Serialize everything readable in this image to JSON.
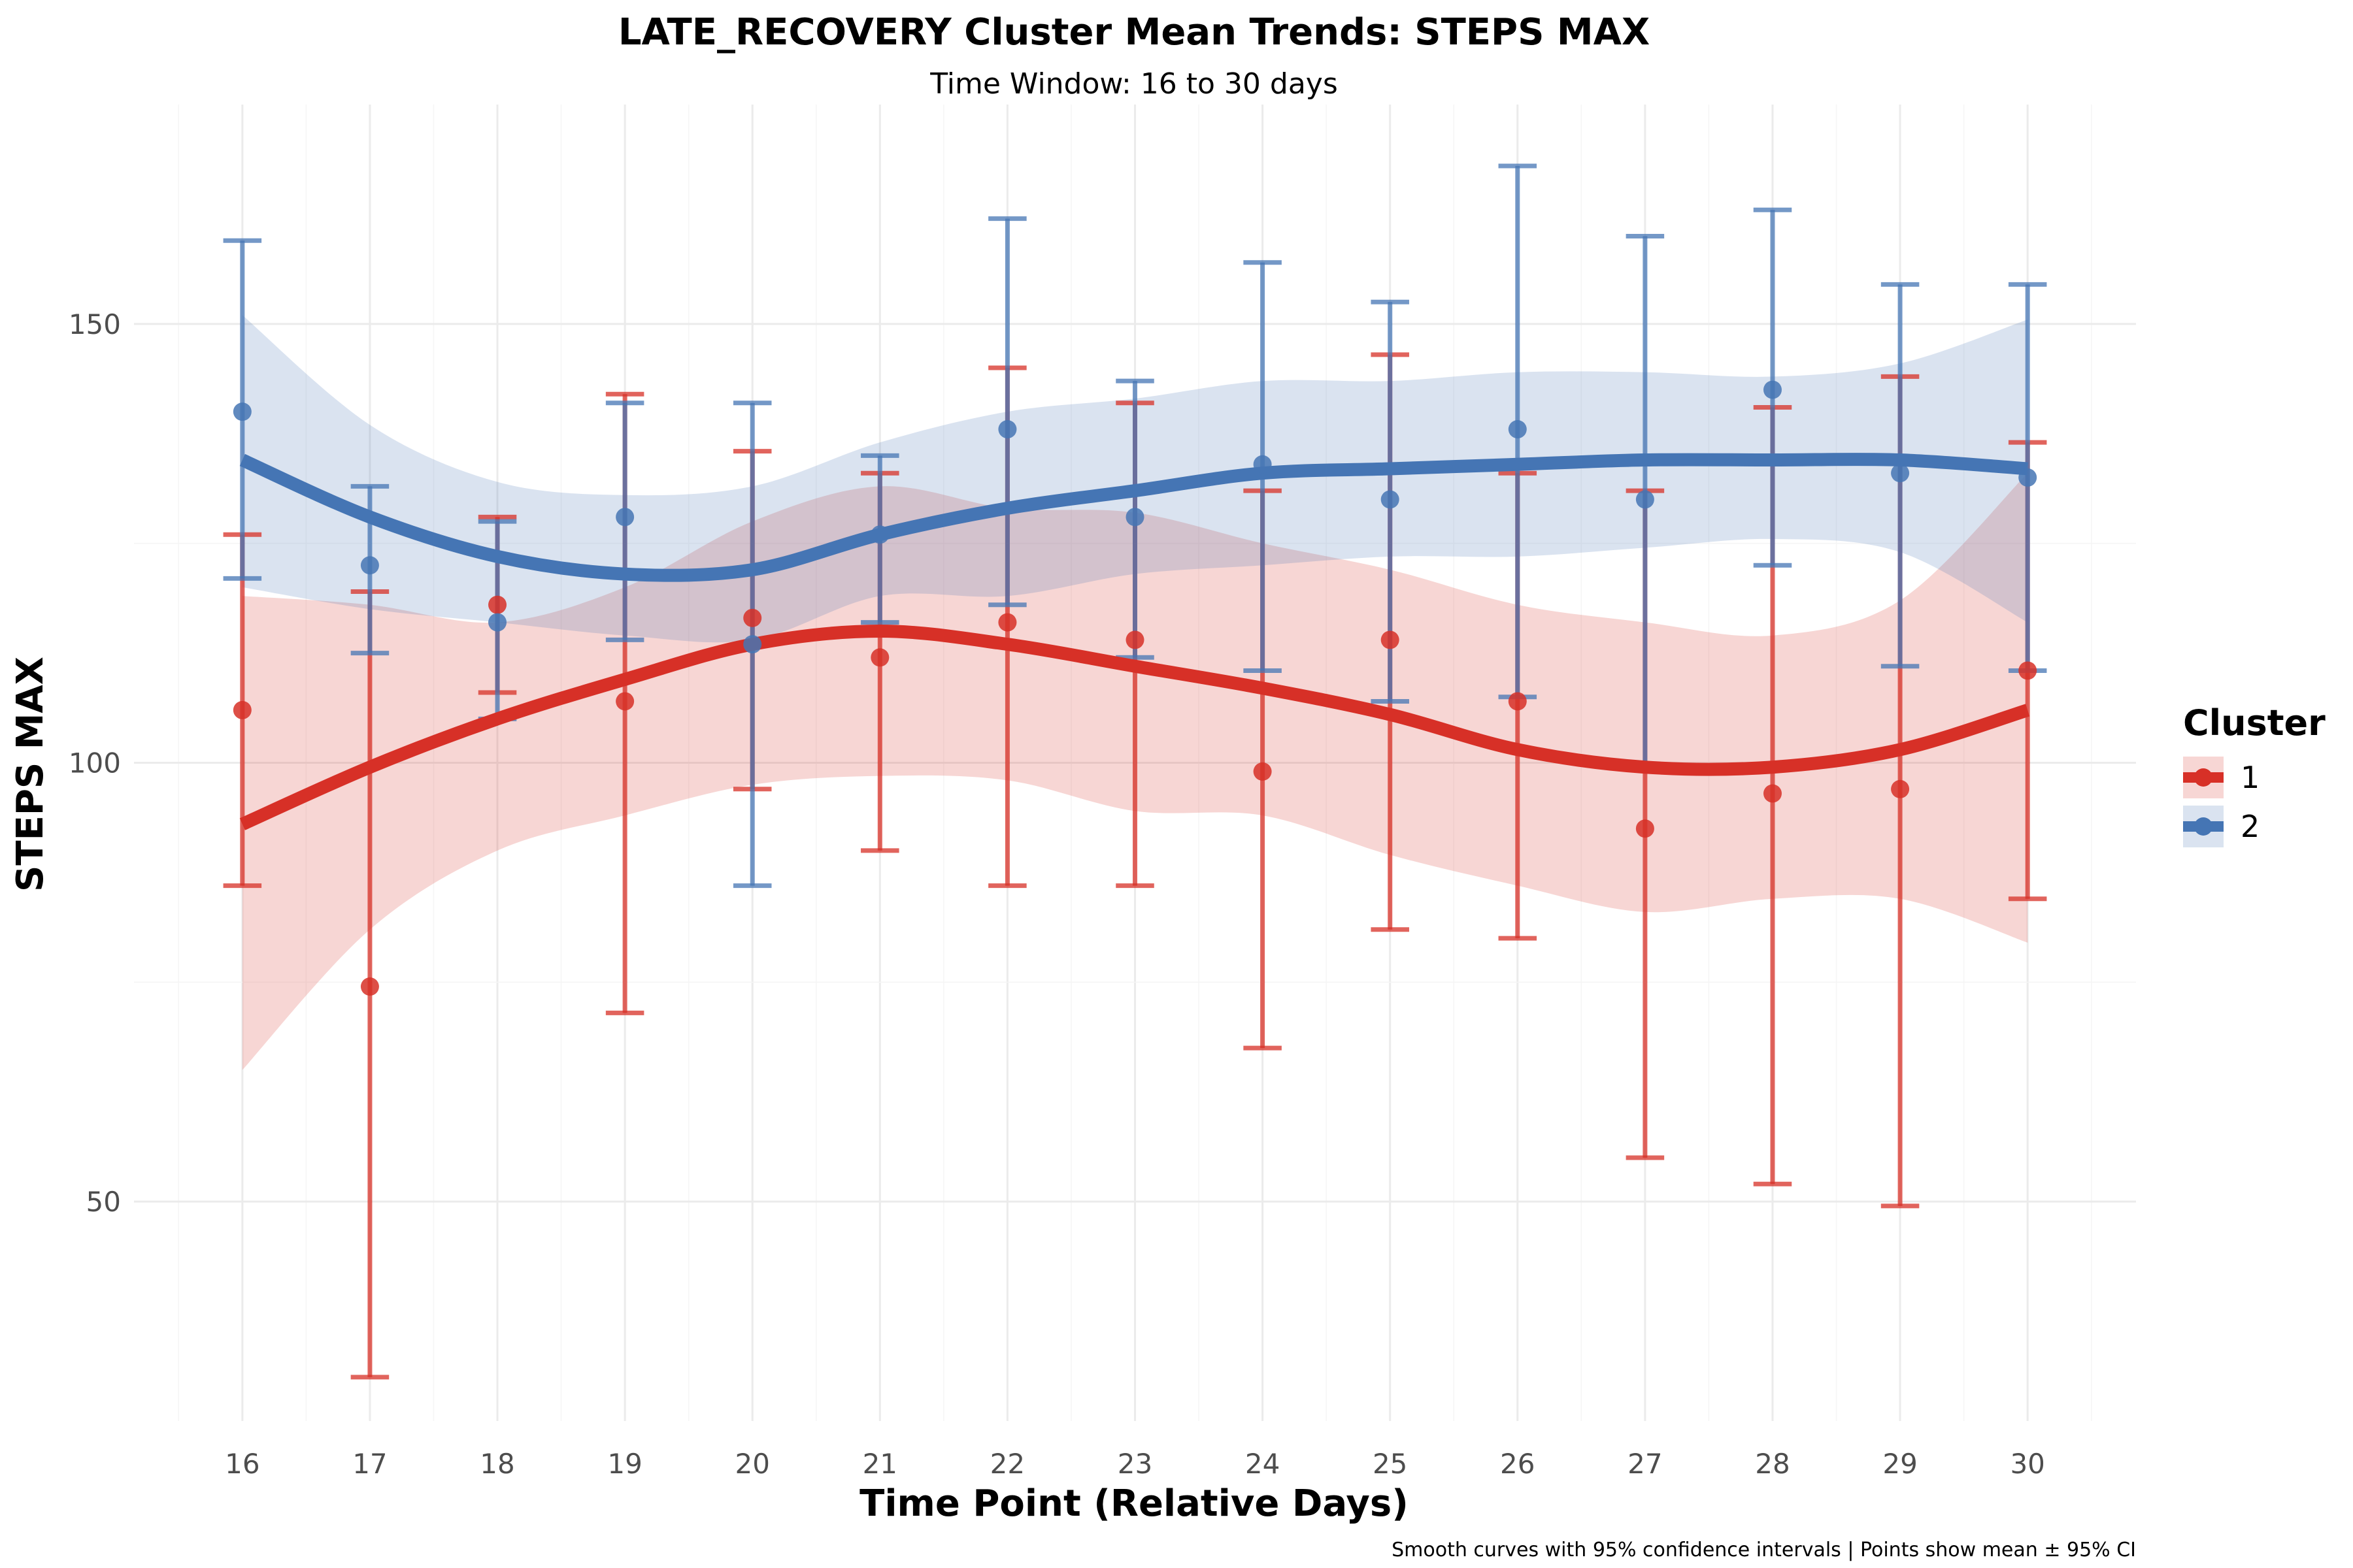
{
  "chart_data": {
    "type": "line",
    "title": "LATE_RECOVERY Cluster Mean Trends: STEPS MAX",
    "subtitle": "Time Window: 16 to 30 days",
    "xlabel": "Time Point (Relative Days)",
    "ylabel": "STEPS MAX",
    "caption": "Smooth curves with 95% confidence intervals | Points show mean ± 95% CI",
    "x": [
      16,
      17,
      18,
      19,
      20,
      21,
      22,
      23,
      24,
      25,
      26,
      27,
      28,
      29,
      30
    ],
    "x_ticks": [
      "16",
      "17",
      "18",
      "19",
      "20",
      "21",
      "22",
      "23",
      "24",
      "25",
      "26",
      "27",
      "28",
      "29",
      "30"
    ],
    "y_ticks": [
      "50",
      "100",
      "150"
    ],
    "y_tick_values": [
      50,
      100,
      150
    ],
    "xlim": [
      15.15,
      30.85
    ],
    "ylim": [
      25,
      175
    ],
    "grid": true,
    "legend": {
      "title": "Cluster",
      "position": "right"
    },
    "series": [
      {
        "name": "1",
        "color": "#d73027",
        "mean": [
          106,
          74.5,
          118,
          107,
          116.5,
          112,
          116,
          114,
          99,
          114,
          107,
          92.5,
          96.5,
          97,
          110.5
        ],
        "ci_low": [
          86,
          30,
          108,
          71.5,
          97,
          90,
          86,
          86,
          67.5,
          81,
          80,
          55,
          52,
          49.5,
          84.5
        ],
        "ci_high": [
          126,
          119.5,
          128,
          142,
          135.5,
          133,
          145,
          141,
          131,
          146.5,
          133,
          131,
          140.5,
          144,
          136.5
        ],
        "smooth": [
          93,
          99.5,
          105,
          109.5,
          113.5,
          115,
          113.5,
          111,
          108.5,
          105.5,
          101.5,
          99.5,
          99.5,
          101.5,
          106
        ],
        "smooth_low": [
          65,
          81,
          90,
          94,
          97.5,
          98.5,
          98,
          94.5,
          94,
          89.5,
          86,
          83,
          84.5,
          84.5,
          79.5
        ],
        "smooth_high": [
          119,
          118,
          116,
          120,
          127.5,
          131.5,
          129,
          128.5,
          125,
          122,
          118,
          116,
          114.5,
          118.5,
          133
        ]
      },
      {
        "name": "2",
        "color": "#4575b4",
        "mean": [
          140,
          122.5,
          116,
          128,
          113.5,
          126,
          138,
          128,
          134,
          130,
          138,
          130,
          142.5,
          133,
          132.5
        ],
        "ci_low": [
          121,
          112.5,
          105,
          114,
          86,
          116,
          118,
          112,
          110.5,
          107,
          107.5,
          99.5,
          122.5,
          111,
          110.5
        ],
        "ci_high": [
          159.5,
          131.5,
          127.5,
          141,
          141,
          135,
          162,
          143.5,
          157,
          152.5,
          168,
          160,
          163,
          154.5,
          154.5
        ],
        "smooth": [
          134.5,
          128,
          123.5,
          121.5,
          122,
          126,
          129,
          131,
          133,
          133.5,
          134,
          134.5,
          134.5,
          134.5,
          133.5
        ],
        "smooth_low": [
          120,
          117.5,
          116,
          114.5,
          114,
          119,
          119,
          121.5,
          122.5,
          123.5,
          123.5,
          124.5,
          125.5,
          124,
          116
        ],
        "smooth_high": [
          151,
          138.5,
          132,
          130.5,
          131.5,
          136.5,
          140,
          141.5,
          143.5,
          143.5,
          144.5,
          144.5,
          144,
          145.5,
          150.5
        ]
      }
    ]
  }
}
